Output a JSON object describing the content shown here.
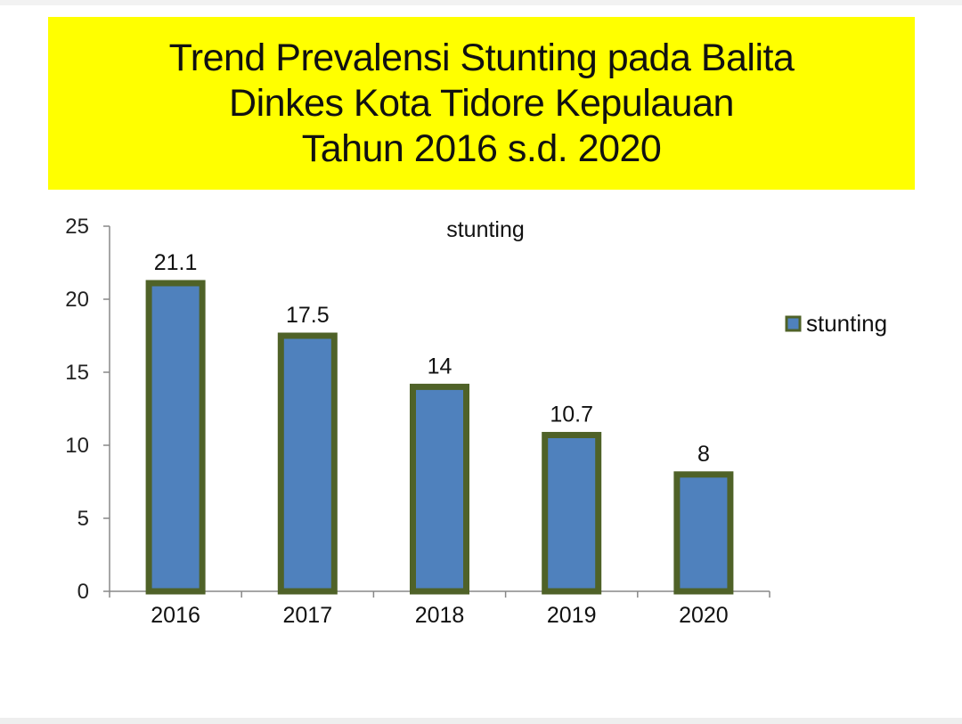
{
  "banner": {
    "title_lines": [
      "Trend Prevalensi Stunting pada Balita",
      "Dinkes Kota Tidore Kepulauan",
      "Tahun 2016 s.d. 2020"
    ],
    "background_color": "#ffff00"
  },
  "chart_data": {
    "type": "bar",
    "title": "stunting",
    "xlabel": "",
    "ylabel": "",
    "categories": [
      "2016",
      "2017",
      "2018",
      "2019",
      "2020"
    ],
    "series": [
      {
        "name": "stunting",
        "values": [
          21.1,
          17.5,
          14,
          10.7,
          8
        ],
        "value_labels": [
          "21.1",
          "17.5",
          "14",
          "10.7",
          "8"
        ],
        "fill_color": "#4f81bd",
        "border_color": "#4f6228"
      }
    ],
    "ylim": [
      0,
      25
    ],
    "yticks": [
      0,
      5,
      10,
      15,
      20,
      25
    ],
    "ytick_labels": [
      "0",
      "5",
      "10",
      "15",
      "20",
      "25"
    ],
    "grid": false,
    "legend": {
      "position": "right",
      "entries": [
        "stunting"
      ]
    }
  }
}
